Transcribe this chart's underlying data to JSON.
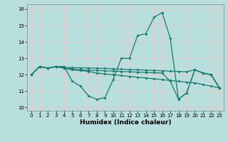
{
  "xlabel": "Humidex (Indice chaleur)",
  "xlim": [
    -0.5,
    23.5
  ],
  "ylim": [
    9.8,
    16.3
  ],
  "yticks": [
    10,
    11,
    12,
    13,
    14,
    15,
    16
  ],
  "xticks": [
    0,
    1,
    2,
    3,
    4,
    5,
    6,
    7,
    8,
    9,
    10,
    11,
    12,
    13,
    14,
    15,
    16,
    17,
    18,
    19,
    20,
    21,
    22,
    23
  ],
  "bg_color": "#b8dede",
  "grid_color": "#e8c8c8",
  "line_color": "#1a7a6e",
  "series": [
    [
      12.0,
      12.5,
      12.4,
      12.5,
      12.5,
      11.6,
      11.3,
      10.7,
      10.5,
      10.6,
      11.7,
      13.0,
      13.0,
      14.4,
      14.5,
      15.5,
      15.8,
      14.2,
      10.5,
      10.9,
      12.3,
      12.1,
      12.0,
      11.2
    ],
    [
      12.0,
      12.5,
      12.4,
      12.5,
      12.4,
      12.3,
      12.25,
      12.2,
      12.1,
      12.05,
      12.0,
      11.95,
      11.9,
      11.85,
      11.8,
      11.75,
      11.7,
      11.65,
      11.6,
      11.55,
      11.5,
      11.4,
      11.3,
      11.2
    ],
    [
      12.0,
      12.5,
      12.4,
      12.5,
      12.4,
      12.35,
      12.3,
      12.28,
      12.26,
      12.24,
      12.22,
      12.2,
      12.18,
      12.16,
      12.14,
      12.12,
      12.1,
      11.6,
      10.5,
      10.9,
      12.3,
      12.1,
      12.0,
      11.2
    ],
    [
      12.0,
      12.5,
      12.4,
      12.5,
      12.45,
      12.43,
      12.42,
      12.41,
      12.4,
      12.38,
      12.36,
      12.34,
      12.32,
      12.3,
      12.28,
      12.26,
      12.24,
      12.22,
      12.2,
      12.18,
      12.3,
      12.1,
      12.0,
      11.2
    ]
  ],
  "marker_size": 2.0,
  "line_width": 0.9,
  "tick_fontsize": 5.0,
  "xlabel_fontsize": 6.5
}
